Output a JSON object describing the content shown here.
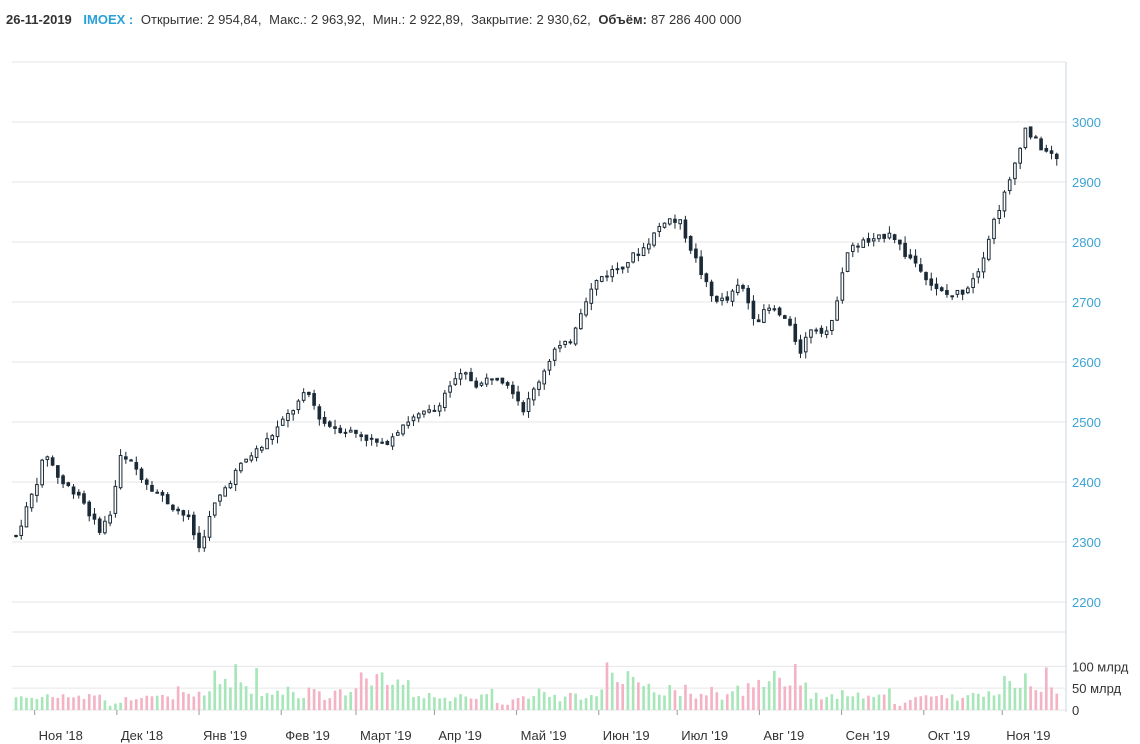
{
  "header": {
    "date": "26-11-2019",
    "ticker": "IMOEX :",
    "open_label": "Открытие:",
    "open": "2 954,84,",
    "high_label": "Макс.:",
    "high": "2 963,92,",
    "low_label": "Мин.:",
    "low": "2 922,89,",
    "close_label": "Закрытие:",
    "close": "2 930,62,",
    "volume_label": "Объём:",
    "volume": "87 286 400 000"
  },
  "colors": {
    "ticker": "#2aa0d8",
    "axis_label": "#3ba3d4",
    "candle": "#1b2a36",
    "up_volume": "#a6e6b8",
    "down_volume": "#f3b3c4",
    "grid": "#e6e6e6"
  },
  "chart_data": {
    "type": "candlestick",
    "price_axis": {
      "ylim": [
        2150,
        3100
      ],
      "ticks": [
        2200,
        2300,
        2400,
        2500,
        2600,
        2700,
        2800,
        2900,
        3000
      ],
      "position": "right"
    },
    "volume_axis": {
      "ticks": [
        "0",
        "50 млрд",
        "100 млрд"
      ],
      "max_billions": 110
    },
    "x_ticks": [
      "Ноя '18",
      "Дек '18",
      "Янв '19",
      "Фев '19",
      "Март '19",
      "Апр '19",
      "Май '19",
      "Июн '19",
      "Июл '19",
      "Авг '19",
      "Сен '19",
      "Окт '19",
      "Ноя '19"
    ],
    "x_tick_days": [
      5,
      27,
      49,
      71,
      91,
      112,
      134,
      156,
      177,
      199,
      221,
      243,
      264
    ],
    "total_days": 280,
    "anchors": [
      [
        0,
        2310
      ],
      [
        5,
        2390
      ],
      [
        8,
        2450
      ],
      [
        12,
        2400
      ],
      [
        17,
        2380
      ],
      [
        22,
        2320
      ],
      [
        25,
        2340
      ],
      [
        28,
        2440
      ],
      [
        31,
        2430
      ],
      [
        35,
        2400
      ],
      [
        40,
        2370
      ],
      [
        46,
        2340
      ],
      [
        49,
        2290
      ],
      [
        53,
        2360
      ],
      [
        58,
        2410
      ],
      [
        62,
        2440
      ],
      [
        66,
        2460
      ],
      [
        70,
        2490
      ],
      [
        74,
        2520
      ],
      [
        78,
        2550
      ],
      [
        82,
        2500
      ],
      [
        86,
        2490
      ],
      [
        92,
        2480
      ],
      [
        98,
        2460
      ],
      [
        104,
        2500
      ],
      [
        108,
        2510
      ],
      [
        112,
        2520
      ],
      [
        116,
        2560
      ],
      [
        120,
        2580
      ],
      [
        124,
        2560
      ],
      [
        128,
        2580
      ],
      [
        132,
        2565
      ],
      [
        136,
        2520
      ],
      [
        140,
        2570
      ],
      [
        144,
        2620
      ],
      [
        148,
        2630
      ],
      [
        152,
        2700
      ],
      [
        156,
        2740
      ],
      [
        162,
        2760
      ],
      [
        168,
        2790
      ],
      [
        174,
        2840
      ],
      [
        178,
        2830
      ],
      [
        182,
        2770
      ],
      [
        186,
        2710
      ],
      [
        190,
        2700
      ],
      [
        194,
        2730
      ],
      [
        198,
        2670
      ],
      [
        202,
        2690
      ],
      [
        206,
        2670
      ],
      [
        210,
        2620
      ],
      [
        213,
        2660
      ],
      [
        218,
        2650
      ],
      [
        222,
        2780
      ],
      [
        226,
        2800
      ],
      [
        230,
        2800
      ],
      [
        234,
        2820
      ],
      [
        238,
        2780
      ],
      [
        242,
        2760
      ],
      [
        246,
        2720
      ],
      [
        250,
        2710
      ],
      [
        254,
        2720
      ],
      [
        258,
        2760
      ],
      [
        262,
        2840
      ],
      [
        266,
        2900
      ],
      [
        270,
        2990
      ],
      [
        274,
        2960
      ],
      [
        278,
        2940
      ],
      [
        280,
        2930
      ]
    ],
    "volume_billions_sample": [
      30,
      33,
      28,
      35,
      31,
      29,
      37,
      26,
      32,
      38,
      30,
      27,
      34,
      29,
      31,
      41,
      18,
      12,
      15,
      22,
      25,
      28,
      30,
      35,
      40,
      33,
      29,
      31,
      26,
      32,
      45,
      38,
      30,
      27,
      36,
      31,
      44,
      92,
      71,
      58,
      48,
      100,
      66,
      55,
      49,
      80,
      42,
      38,
      35,
      47,
      53,
      41,
      60,
      39,
      33,
      30,
      44,
      51,
      38,
      29,
      35,
      42,
      48,
      39,
      55,
      62,
      70,
      58,
      74,
      88,
      79,
      63,
      57,
      85,
      72,
      68
    ]
  }
}
